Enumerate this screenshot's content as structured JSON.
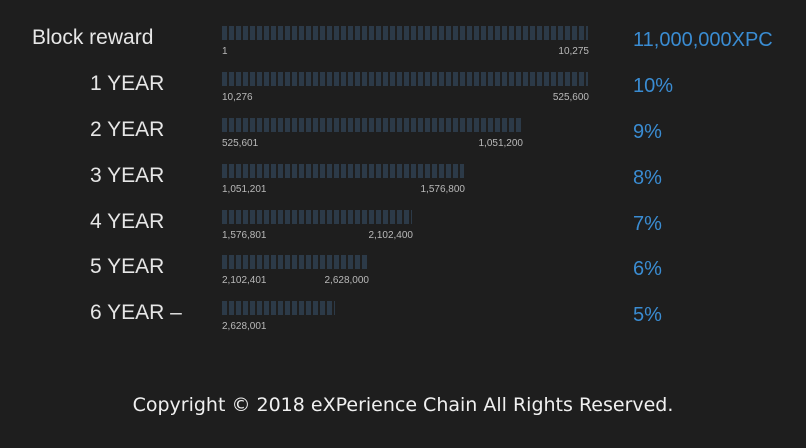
{
  "chart_data": {
    "type": "bar",
    "orientation": "horizontal",
    "categories": [
      "Block reward",
      "1 YEAR",
      "2 YEAR",
      "3 YEAR",
      "4 YEAR",
      "5 YEAR",
      "6 YEAR –"
    ],
    "values": [
      10275,
      525600,
      1051200,
      1576800,
      2102400,
      2628000,
      null
    ],
    "series": [
      {
        "values_start": [
          1,
          10276,
          525601,
          1051201,
          1576801,
          2102401,
          2628001
        ],
        "values_end": [
          10275,
          525600,
          1051200,
          1576800,
          2102400,
          2628000,
          null
        ],
        "range_start_labels": [
          "1",
          "10,276",
          "525,601",
          "1,051,201",
          "1,576,801",
          "2,102,401",
          "2,628,001"
        ],
        "range_end_labels": [
          "10,275",
          "525,600",
          "1,051,200",
          "1,576,800",
          "2,102,400",
          "2,628,000",
          ""
        ],
        "reward_labels": [
          "11,000,000XPC",
          "10%",
          "9%",
          "8%",
          "7%",
          "6%",
          "5%"
        ]
      }
    ],
    "bar_fill_fractions": [
      1.0,
      1.0,
      0.82,
      0.66,
      0.52,
      0.4,
      0.31
    ],
    "colors": {
      "background": "#1e1e1e",
      "bar": "#2c3a48",
      "label": "#e6e6e6",
      "tick": "#b9b9b9",
      "reward": "#3a8cd2"
    }
  },
  "footer": {
    "copyright": "Copyright © 2018 eXPerience Chain All Rights Reserved."
  }
}
